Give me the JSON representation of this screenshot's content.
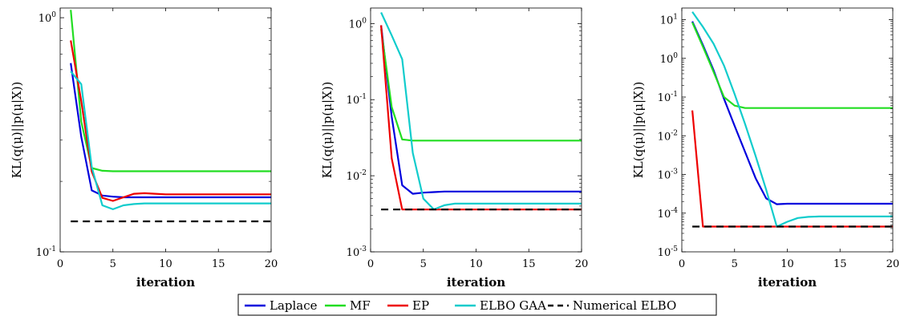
{
  "chart_data": [
    {
      "type": "line",
      "xlabel": "iteration",
      "ylabel": "KL(q(μ)||p(μ|X))",
      "xlim": [
        0,
        20
      ],
      "ylim": [
        0.1,
        1.1
      ],
      "yscale": "log",
      "xticks": [
        "0",
        "5",
        "10",
        "15",
        "20"
      ],
      "yticks": [
        {
          "v": 1,
          "label": "10⁰"
        },
        {
          "v": 0.1,
          "label": "10⁻¹"
        }
      ],
      "series": [
        {
          "name": "Laplace",
          "x": [
            1,
            2,
            3,
            4,
            5,
            6,
            7,
            8,
            9,
            10,
            11,
            12,
            13,
            14,
            15,
            16,
            17,
            18,
            19,
            20
          ],
          "y": [
            0.64,
            0.31,
            0.183,
            0.174,
            0.172,
            0.171,
            0.171,
            0.171,
            0.171,
            0.171,
            0.171,
            0.171,
            0.171,
            0.171,
            0.171,
            0.171,
            0.171,
            0.171,
            0.171,
            0.171
          ]
        },
        {
          "name": "MF",
          "x": [
            1,
            2,
            3,
            4,
            5,
            6,
            7,
            8,
            9,
            10,
            11,
            12,
            13,
            14,
            15,
            16,
            17,
            18,
            19,
            20
          ],
          "y": [
            1.08,
            0.36,
            0.228,
            0.222,
            0.221,
            0.221,
            0.221,
            0.221,
            0.221,
            0.221,
            0.221,
            0.221,
            0.221,
            0.221,
            0.221,
            0.221,
            0.221,
            0.221,
            0.221,
            0.221
          ]
        },
        {
          "name": "EP",
          "x": [
            1,
            2,
            3,
            4,
            5,
            6,
            7,
            8,
            9,
            10,
            11,
            12,
            13,
            14,
            15,
            16,
            17,
            18,
            19,
            20
          ],
          "y": [
            0.8,
            0.44,
            0.22,
            0.17,
            0.165,
            0.171,
            0.177,
            0.178,
            0.177,
            0.176,
            0.176,
            0.176,
            0.176,
            0.176,
            0.176,
            0.176,
            0.176,
            0.176,
            0.176,
            0.176
          ]
        },
        {
          "name": "ELBO GAA",
          "x": [
            1,
            2,
            3,
            4,
            5,
            6,
            7,
            8,
            9,
            10,
            11,
            12,
            13,
            14,
            15,
            16,
            17,
            18,
            19,
            20
          ],
          "y": [
            0.59,
            0.52,
            0.23,
            0.158,
            0.152,
            0.158,
            0.16,
            0.161,
            0.161,
            0.161,
            0.161,
            0.161,
            0.161,
            0.161,
            0.161,
            0.161,
            0.161,
            0.161,
            0.161,
            0.161
          ]
        },
        {
          "name": "Numerical ELBO",
          "x": [
            1,
            20
          ],
          "y": [
            0.135,
            0.135
          ]
        }
      ]
    },
    {
      "type": "line",
      "xlabel": "iteration",
      "ylabel": "KL(q(μ)||p(μ|X))",
      "xlim": [
        0,
        20
      ],
      "ylim": [
        0.001,
        1.6
      ],
      "yscale": "log",
      "xticks": [
        "0",
        "5",
        "10",
        "15",
        "20"
      ],
      "yticks": [
        {
          "v": 1,
          "label": "10⁰"
        },
        {
          "v": 0.1,
          "label": "10⁻¹"
        },
        {
          "v": 0.01,
          "label": "10⁻²"
        },
        {
          "v": 0.001,
          "label": "10⁻³"
        }
      ],
      "series": [
        {
          "name": "Laplace",
          "x": [
            1,
            2,
            3,
            4,
            5,
            6,
            7,
            8,
            9,
            10,
            11,
            12,
            13,
            14,
            15,
            16,
            17,
            18,
            19,
            20
          ],
          "y": [
            0.95,
            0.06,
            0.0075,
            0.0058,
            0.006,
            0.0061,
            0.0062,
            0.0062,
            0.0062,
            0.0062,
            0.0062,
            0.0062,
            0.0062,
            0.0062,
            0.0062,
            0.0062,
            0.0062,
            0.0062,
            0.0062,
            0.0062
          ]
        },
        {
          "name": "MF",
          "x": [
            1,
            2,
            3,
            4,
            5,
            6,
            7,
            8,
            9,
            10,
            11,
            12,
            13,
            14,
            15,
            16,
            17,
            18,
            19,
            20
          ],
          "y": [
            0.85,
            0.08,
            0.03,
            0.029,
            0.029,
            0.029,
            0.029,
            0.029,
            0.029,
            0.029,
            0.029,
            0.029,
            0.029,
            0.029,
            0.029,
            0.029,
            0.029,
            0.029,
            0.029,
            0.029
          ]
        },
        {
          "name": "EP",
          "x": [
            1,
            2,
            3,
            4,
            5,
            6,
            7,
            8,
            9,
            10,
            11,
            12,
            13,
            14,
            15,
            16,
            17,
            18,
            19,
            20
          ],
          "y": [
            0.95,
            0.017,
            0.0036,
            0.0036,
            0.0036,
            0.0036,
            0.0036,
            0.0036,
            0.0036,
            0.0036,
            0.0036,
            0.0036,
            0.0036,
            0.0036,
            0.0036,
            0.0036,
            0.0036,
            0.0036,
            0.0036,
            0.0036
          ]
        },
        {
          "name": "ELBO GAA",
          "x": [
            1,
            2,
            3,
            4,
            5,
            6,
            7,
            8,
            9,
            10,
            11,
            12,
            13,
            14,
            15,
            16,
            17,
            18,
            19,
            20
          ],
          "y": [
            1.4,
            0.7,
            0.34,
            0.02,
            0.005,
            0.0036,
            0.0041,
            0.0043,
            0.0043,
            0.0043,
            0.0043,
            0.0043,
            0.0043,
            0.0043,
            0.0043,
            0.0043,
            0.0043,
            0.0043,
            0.0043,
            0.0043
          ]
        },
        {
          "name": "Numerical ELBO",
          "x": [
            1,
            20
          ],
          "y": [
            0.0036,
            0.0036
          ]
        }
      ]
    },
    {
      "type": "line",
      "xlabel": "iteration",
      "ylabel": "KL(q(μ)||p(μ|X))",
      "xlim": [
        0,
        20
      ],
      "ylim": [
        1e-05,
        20
      ],
      "yscale": "log",
      "xticks": [
        "0",
        "5",
        "10",
        "15",
        "20"
      ],
      "yticks": [
        {
          "v": 10,
          "label": "10¹"
        },
        {
          "v": 1,
          "label": "10⁰"
        },
        {
          "v": 0.1,
          "label": "10⁻¹"
        },
        {
          "v": 0.01,
          "label": "10⁻²"
        },
        {
          "v": 0.001,
          "label": "10⁻³"
        },
        {
          "v": 0.0001,
          "label": "10⁻⁴"
        },
        {
          "v": 1e-05,
          "label": "10⁻⁵"
        }
      ],
      "series": [
        {
          "name": "Laplace",
          "x": [
            1,
            2,
            3,
            4,
            5,
            6,
            7,
            8,
            9,
            10,
            11,
            12,
            13,
            14,
            15,
            16,
            17,
            18,
            19,
            20
          ],
          "y": [
            9.0,
            2.2,
            0.5,
            0.09,
            0.018,
            0.0038,
            0.0008,
            0.00024,
            0.00017,
            0.000175,
            0.000175,
            0.000175,
            0.000175,
            0.000175,
            0.000175,
            0.000175,
            0.000175,
            0.000175,
            0.000175,
            0.000175
          ]
        },
        {
          "name": "MF",
          "x": [
            1,
            2,
            3,
            4,
            5,
            6,
            7,
            8,
            9,
            10,
            11,
            12,
            13,
            14,
            15,
            16,
            17,
            18,
            19,
            20
          ],
          "y": [
            8.5,
            2.0,
            0.45,
            0.1,
            0.06,
            0.052,
            0.052,
            0.052,
            0.052,
            0.052,
            0.052,
            0.052,
            0.052,
            0.052,
            0.052,
            0.052,
            0.052,
            0.052,
            0.052,
            0.052
          ]
        },
        {
          "name": "EP",
          "x": [
            1,
            2,
            3,
            4,
            5,
            6,
            7,
            8,
            9,
            10,
            11,
            12,
            13,
            14,
            15,
            16,
            17,
            18,
            19,
            20
          ],
          "y": [
            0.045,
            4.5e-05,
            4.5e-05,
            4.5e-05,
            4.5e-05,
            4.5e-05,
            4.5e-05,
            4.5e-05,
            4.5e-05,
            4.5e-05,
            4.5e-05,
            4.5e-05,
            4.5e-05,
            4.5e-05,
            4.5e-05,
            4.5e-05,
            4.5e-05,
            4.5e-05,
            4.5e-05,
            4.5e-05
          ]
        },
        {
          "name": "ELBO GAA",
          "x": [
            1,
            2,
            3,
            4,
            5,
            6,
            7,
            8,
            9,
            10,
            11,
            12,
            13,
            14,
            15,
            16,
            17,
            18,
            19,
            20
          ],
          "y": [
            16.0,
            6.5,
            2.4,
            0.65,
            0.12,
            0.02,
            0.003,
            0.0004,
            4.5e-05,
            6e-05,
            7.5e-05,
            8e-05,
            8.2e-05,
            8.2e-05,
            8.2e-05,
            8.2e-05,
            8.2e-05,
            8.2e-05,
            8.2e-05,
            8.2e-05
          ]
        },
        {
          "name": "Numerical ELBO",
          "x": [
            1,
            20
          ],
          "y": [
            4.5e-05,
            4.5e-05
          ]
        }
      ]
    }
  ],
  "series_styles": [
    {
      "name": "Laplace",
      "color": "#0000dd",
      "dash": "none"
    },
    {
      "name": "MF",
      "color": "#22dd22",
      "dash": "none"
    },
    {
      "name": "EP",
      "color": "#ee0000",
      "dash": "none"
    },
    {
      "name": "ELBO GAA",
      "color": "#11cccc",
      "dash": "none"
    },
    {
      "name": "Numerical ELBO",
      "color": "#000000",
      "dash": "dashed"
    }
  ],
  "legend": {
    "placement": "bottom-center",
    "entries": [
      "Laplace",
      "MF",
      "EP",
      "ELBO GAA",
      "Numerical ELBO"
    ]
  }
}
